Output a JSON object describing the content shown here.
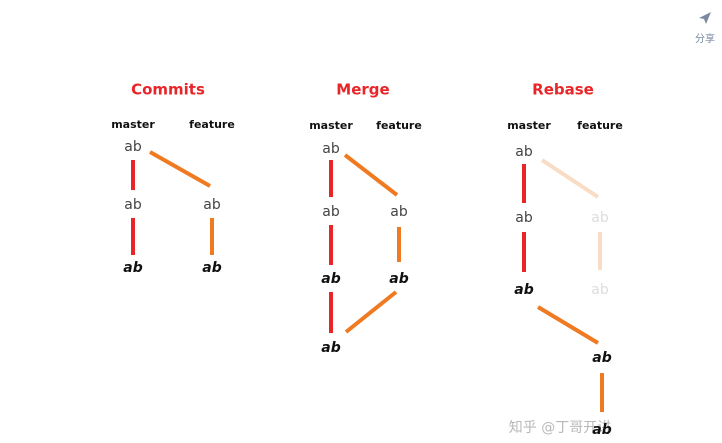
{
  "share": "分享",
  "watermark": "知乎 @丁哥开讲",
  "panels": [
    {
      "title": "Commits",
      "branches": [
        "master",
        "feature"
      ],
      "nodes": [
        "ab",
        "ab",
        "ab",
        "ab",
        "ab"
      ]
    },
    {
      "title": "Merge",
      "branches": [
        "master",
        "feature"
      ],
      "nodes": [
        "ab",
        "ab",
        "ab",
        "ab",
        "ab",
        "ab"
      ]
    },
    {
      "title": "Rebase",
      "branches": [
        "master",
        "feature"
      ],
      "nodes": [
        "ab",
        "ab",
        "ab",
        "ab",
        "ab",
        "ab",
        "ab"
      ]
    }
  ]
}
